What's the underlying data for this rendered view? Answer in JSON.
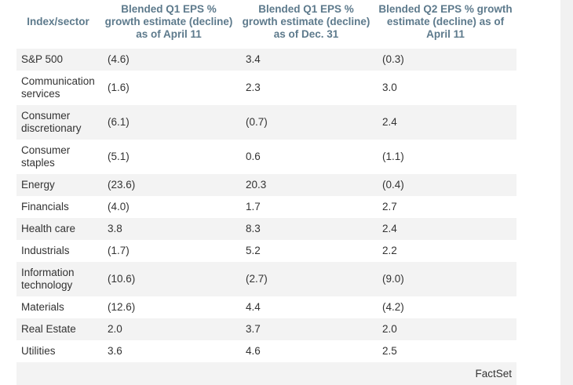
{
  "chart_data": {
    "type": "table",
    "columns": [
      "Index/sector",
      "Blended Q1 EPS % growth estimate (decline) as of April 11",
      "Blended Q1 EPS % growth estimate (decline) as of Dec. 31",
      "Blended Q2 EPS % growth estimate (decline) as of April 11"
    ],
    "rows": [
      {
        "name": "S&P 500",
        "q1_apr": "(4.6)",
        "q1_dec": "3.4",
        "q2_apr": "(0.3)"
      },
      {
        "name": "Communication services",
        "q1_apr": "(1.6)",
        "q1_dec": "2.3",
        "q2_apr": "3.0"
      },
      {
        "name": "Consumer discretionary",
        "q1_apr": "(6.1)",
        "q1_dec": "(0.7)",
        "q2_apr": "2.4"
      },
      {
        "name": "Consumer staples",
        "q1_apr": "(5.1)",
        "q1_dec": "0.6",
        "q2_apr": "(1.1)"
      },
      {
        "name": "Energy",
        "q1_apr": "(23.6)",
        "q1_dec": "20.3",
        "q2_apr": "(0.4)"
      },
      {
        "name": "Financials",
        "q1_apr": "(4.0)",
        "q1_dec": "1.7",
        "q2_apr": "2.7"
      },
      {
        "name": "Health care",
        "q1_apr": "3.8",
        "q1_dec": "8.3",
        "q2_apr": "2.4"
      },
      {
        "name": "Industrials",
        "q1_apr": "(1.7)",
        "q1_dec": "5.2",
        "q2_apr": "2.2"
      },
      {
        "name": "Information technology",
        "q1_apr": "(10.6)",
        "q1_dec": "(2.7)",
        "q2_apr": "(9.0)"
      },
      {
        "name": "Materials",
        "q1_apr": "(12.6)",
        "q1_dec": "4.4",
        "q2_apr": "(4.2)"
      },
      {
        "name": "Real Estate",
        "q1_apr": "2.0",
        "q1_dec": "3.7",
        "q2_apr": "2.0"
      },
      {
        "name": "Utilities",
        "q1_apr": "3.6",
        "q1_dec": "4.6",
        "q2_apr": "2.5"
      }
    ],
    "source": "FactSet"
  },
  "colors": {
    "header_text": "#5d7a8c",
    "body_text": "#333333",
    "stripe": "#f3f3f3"
  }
}
